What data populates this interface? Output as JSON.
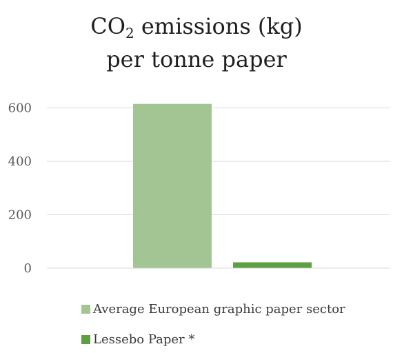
{
  "chart_data": {
    "type": "bar",
    "title": {
      "prefix": "CO",
      "subscript": "2",
      "suffix": " emissions (kg)",
      "line2": "per tonne paper"
    },
    "categories": [
      "Average European graphic paper sector",
      "Lessebo Paper *"
    ],
    "values": [
      615,
      22
    ],
    "colors": [
      "#a3c594",
      "#5e9e45"
    ],
    "ylim": [
      0,
      700
    ],
    "yticks": [
      "0",
      "200",
      "400",
      "600"
    ],
    "ytick_values": [
      0,
      200,
      400,
      600
    ],
    "grid": true,
    "legend_placement": "bottom",
    "xlabel": "",
    "ylabel": ""
  }
}
